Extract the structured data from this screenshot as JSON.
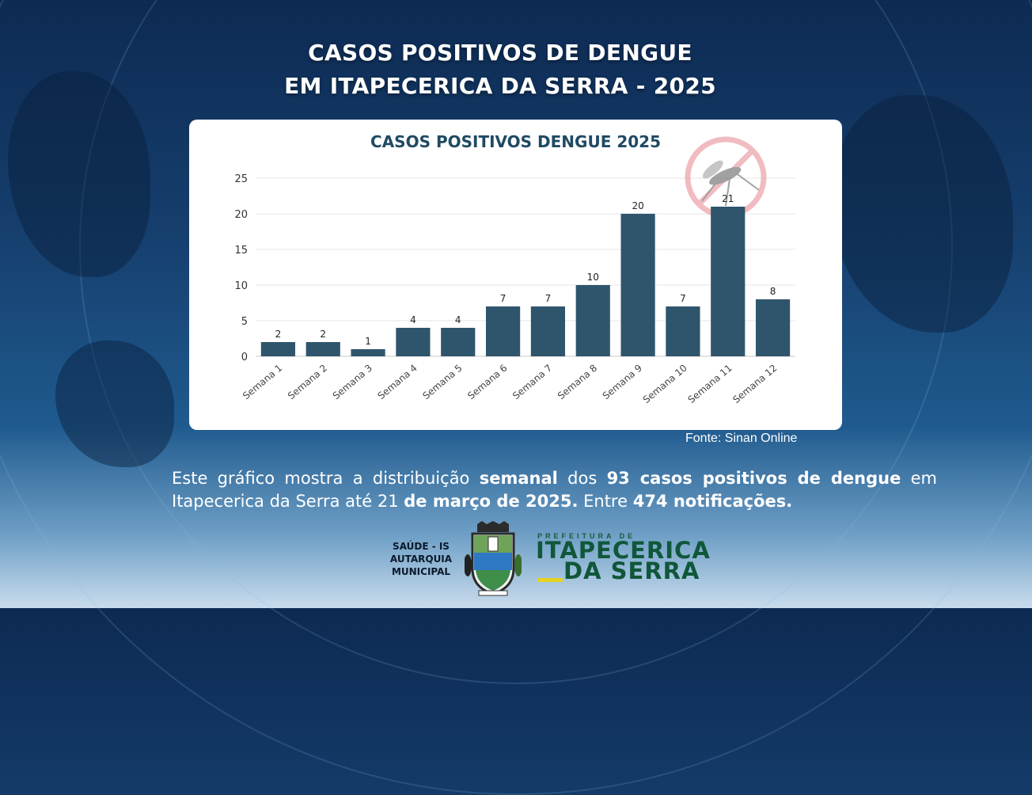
{
  "header": {
    "title_line1": "CASOS POSITIVOS DE DENGUE",
    "title_line2": "EM ITAPECERICA DA SERRA - 2025"
  },
  "chart_data": {
    "type": "bar",
    "title": "CASOS POSITIVOS DENGUE 2025",
    "categories": [
      "Semana 1",
      "Semana 2",
      "Semana 3",
      "Semana 4",
      "Semana 5",
      "Semana 6",
      "Semana 7",
      "Semana 8",
      "Semana 9",
      "Semana 10",
      "Semana 11",
      "Semana 12"
    ],
    "values": [
      2,
      2,
      1,
      4,
      4,
      7,
      7,
      10,
      20,
      7,
      21,
      8
    ],
    "ylim": [
      0,
      25
    ],
    "yticks": [
      0,
      5,
      10,
      15,
      20,
      25
    ],
    "grid": true,
    "bar_color": "#2f556c"
  },
  "source": "Fonte: Sinan Online",
  "caption": {
    "p1": "Este gráfico mostra a distribuição ",
    "b1": "semanal",
    "p2": " dos ",
    "b2": "93 casos positivos de dengue",
    "p3": " em Itapecerica da Serra até 21 ",
    "b3": "de março de 2025.",
    "p4": " Entre ",
    "b4": "474 notificações."
  },
  "footer": {
    "saude_line1": "SAÚDE - IS",
    "saude_line2": "AUTARQUIA",
    "saude_line3": "MUNICIPAL",
    "pref_small": "PREFEITURA DE",
    "pref_line1": "ITAPECERICA",
    "pref_line2": "DA SERRA"
  },
  "icons": {
    "mosquito": "no-mosquito-icon",
    "crest": "municipal-crest"
  }
}
